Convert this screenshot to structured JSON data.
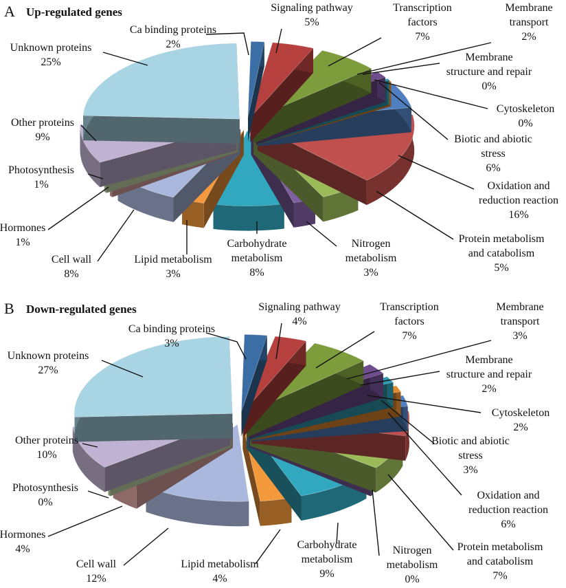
{
  "chart_data": [
    {
      "type": "pie",
      "panel_letter": "A",
      "title": "Up-regulated genes",
      "slices": [
        {
          "name": "Ca binding proteins",
          "value": 2,
          "color": "#3a6ea5"
        },
        {
          "name": "Signaling pathway",
          "value": 5,
          "color": "#b5403e"
        },
        {
          "name": "Transcription factors",
          "value": 7,
          "color": "#7d9c3c"
        },
        {
          "name": "Membrane transport",
          "value": 2,
          "color": "#6e4c8e"
        },
        {
          "name": "Membrane structure and repair",
          "value": 0,
          "color": "#2f9bb0"
        },
        {
          "name": "Cytoskeleton",
          "value": 0,
          "color": "#e08a2e"
        },
        {
          "name": "Biotic and abiotic stress",
          "value": 6,
          "color": "#4f7fc0"
        },
        {
          "name": "Oxidation and reduction reaction",
          "value": 16,
          "color": "#c0504d"
        },
        {
          "name": "Protein metabolism and catabolism",
          "value": 5,
          "color": "#9bbb59"
        },
        {
          "name": "Nitrogen metabolism",
          "value": 3,
          "color": "#7f5fa0"
        },
        {
          "name": "Carbohydrate metabolism",
          "value": 8,
          "color": "#31a8c0"
        },
        {
          "name": "Lipid metabolism",
          "value": 3,
          "color": "#f59a3c"
        },
        {
          "name": "Cell wall",
          "value": 8,
          "color": "#a9b8dc"
        },
        {
          "name": "Hormones",
          "value": 1,
          "color": "#e3a9a8"
        },
        {
          "name": "Photosynthesis",
          "value": 1,
          "color": "#cfe0b0"
        },
        {
          "name": "Other proteins",
          "value": 9,
          "color": "#c0b2d2"
        },
        {
          "name": "Unknown proteins",
          "value": 25,
          "color": "#a8d4e4"
        }
      ],
      "labels": [
        {
          "lines": [
            "Ca binding proteins",
            "2%"
          ]
        },
        {
          "lines": [
            "Signaling pathway",
            "5%"
          ]
        },
        {
          "lines": [
            "Transcription",
            "factors",
            "7%"
          ]
        },
        {
          "lines": [
            "Membrane",
            "transport",
            "2%"
          ]
        },
        {
          "lines": [
            "Membrane",
            "structure and repair",
            "0%"
          ]
        },
        {
          "lines": [
            "Cytoskeleton",
            "0%"
          ]
        },
        {
          "lines": [
            "Biotic and abiotic",
            "stress",
            "6%"
          ]
        },
        {
          "lines": [
            "Oxidation and",
            "reduction reaction",
            "16%"
          ]
        },
        {
          "lines": [
            "Protein metabolism",
            "and catabolism",
            "5%"
          ]
        },
        {
          "lines": [
            "Nitrogen",
            "metabolism",
            "3%"
          ]
        },
        {
          "lines": [
            "Carbohydrate",
            "metabolism",
            "8%"
          ]
        },
        {
          "lines": [
            "Lipid metabolism",
            "3%"
          ]
        },
        {
          "lines": [
            "Cell wall",
            "8%"
          ]
        },
        {
          "lines": [
            "Hormones",
            "1%"
          ]
        },
        {
          "lines": [
            "Photosynthesis",
            "1%"
          ]
        },
        {
          "lines": [
            "Other proteins",
            "9%"
          ]
        },
        {
          "lines": [
            "Unknown proteins",
            "25%"
          ]
        }
      ]
    },
    {
      "type": "pie",
      "panel_letter": "B",
      "title": "Down-regulated genes",
      "slices": [
        {
          "name": "Ca binding proteins",
          "value": 3,
          "color": "#3a6ea5"
        },
        {
          "name": "Signaling pathway",
          "value": 4,
          "color": "#b5403e"
        },
        {
          "name": "Transcription factors",
          "value": 7,
          "color": "#7d9c3c"
        },
        {
          "name": "Membrane transport",
          "value": 3,
          "color": "#6e4c8e"
        },
        {
          "name": "Membrane structure and repair",
          "value": 2,
          "color": "#2f9bb0"
        },
        {
          "name": "Cytoskeleton",
          "value": 2,
          "color": "#e08a2e"
        },
        {
          "name": "Biotic and abiotic stress",
          "value": 3,
          "color": "#4f7fc0"
        },
        {
          "name": "Oxidation and reduction reaction",
          "value": 6,
          "color": "#c0504d"
        },
        {
          "name": "Protein metabolism and catabolism",
          "value": 7,
          "color": "#9bbb59"
        },
        {
          "name": "Nitrogen metabolism",
          "value": 0,
          "color": "#7f5fa0"
        },
        {
          "name": "Carbohydrate metabolism",
          "value": 9,
          "color": "#31a8c0"
        },
        {
          "name": "Lipid metabolism",
          "value": 4,
          "color": "#f59a3c"
        },
        {
          "name": "Cell wall",
          "value": 12,
          "color": "#a9b8dc"
        },
        {
          "name": "Hormones",
          "value": 4,
          "color": "#e3a9a8"
        },
        {
          "name": "Photosynthesis",
          "value": 0,
          "color": "#cfe0b0"
        },
        {
          "name": "Other proteins",
          "value": 10,
          "color": "#c0b2d2"
        },
        {
          "name": "Unknown proteins",
          "value": 27,
          "color": "#a8d4e4"
        }
      ],
      "labels": [
        {
          "lines": [
            "Ca binding proteins",
            "3%"
          ]
        },
        {
          "lines": [
            "Signaling pathway",
            "4%"
          ]
        },
        {
          "lines": [
            "Transcription",
            "factors",
            "7%"
          ]
        },
        {
          "lines": [
            "Membrane",
            "transport",
            "3%"
          ]
        },
        {
          "lines": [
            "Membrane",
            "structure and repair",
            "2%"
          ]
        },
        {
          "lines": [
            "Cytoskeleton",
            "2%"
          ]
        },
        {
          "lines": [
            "Biotic and abiotic",
            "stress",
            "3%"
          ]
        },
        {
          "lines": [
            "Oxidation and",
            "reduction reaction",
            "6%"
          ]
        },
        {
          "lines": [
            "Protein metabolism",
            "and catabolism",
            "7%"
          ]
        },
        {
          "lines": [
            "Nitrogen",
            "metabolism",
            "0%"
          ]
        },
        {
          "lines": [
            "Carbohydrate",
            "metabolism",
            "9%"
          ]
        },
        {
          "lines": [
            "Lipid metabolism",
            "4%"
          ]
        },
        {
          "lines": [
            "Cell wall",
            "12%"
          ]
        },
        {
          "lines": [
            "Hormones",
            "4%"
          ]
        },
        {
          "lines": [
            "Photosynthesis",
            "0%"
          ]
        },
        {
          "lines": [
            "Other proteins",
            "10%"
          ]
        },
        {
          "lines": [
            "Unknown proteins",
            "27%"
          ]
        }
      ]
    }
  ]
}
